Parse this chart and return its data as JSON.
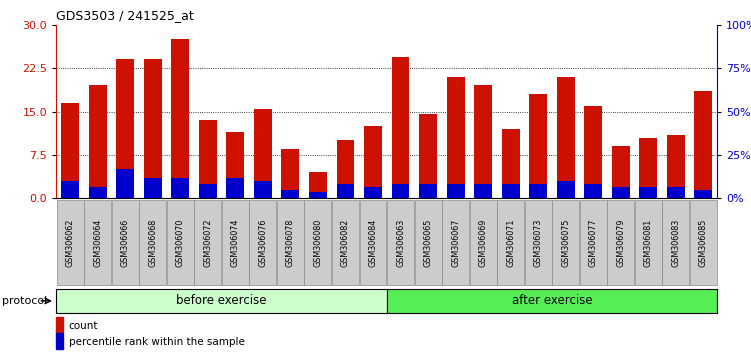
{
  "title": "GDS3503 / 241525_at",
  "categories": [
    "GSM306062",
    "GSM306064",
    "GSM306066",
    "GSM306068",
    "GSM306070",
    "GSM306072",
    "GSM306074",
    "GSM306076",
    "GSM306078",
    "GSM306080",
    "GSM306082",
    "GSM306084",
    "GSM306063",
    "GSM306065",
    "GSM306067",
    "GSM306069",
    "GSM306071",
    "GSM306073",
    "GSM306075",
    "GSM306077",
    "GSM306079",
    "GSM306081",
    "GSM306083",
    "GSM306085"
  ],
  "count_values": [
    16.5,
    19.5,
    24.0,
    24.0,
    27.5,
    13.5,
    11.5,
    15.5,
    8.5,
    4.5,
    10.0,
    12.5,
    24.5,
    14.5,
    21.0,
    19.5,
    12.0,
    18.0,
    21.0,
    16.0,
    9.0,
    10.5,
    11.0,
    18.5
  ],
  "percentile_values": [
    3.0,
    2.0,
    5.0,
    3.5,
    3.5,
    2.5,
    3.5,
    3.0,
    1.5,
    1.0,
    2.5,
    2.0,
    2.5,
    2.5,
    2.5,
    2.5,
    2.5,
    2.5,
    3.0,
    2.5,
    2.0,
    2.0,
    2.0,
    1.5
  ],
  "n_before": 12,
  "n_after": 12,
  "bar_color_count": "#cc1100",
  "bar_color_percentile": "#0000cc",
  "before_color": "#ccffcc",
  "after_color": "#55ee55",
  "before_label": "before exercise",
  "after_label": "after exercise",
  "protocol_label": "protocol",
  "legend_count": "count",
  "legend_percentile": "percentile rank within the sample",
  "ylim_left": [
    0,
    30
  ],
  "yticks_left": [
    0,
    7.5,
    15,
    22.5,
    30
  ],
  "ylim_right": [
    0,
    100
  ],
  "yticks_right": [
    0,
    25,
    50,
    75,
    100
  ],
  "axis_color_left": "#cc1100",
  "axis_color_right": "#0000cc",
  "tick_label_bg": "#cccccc"
}
